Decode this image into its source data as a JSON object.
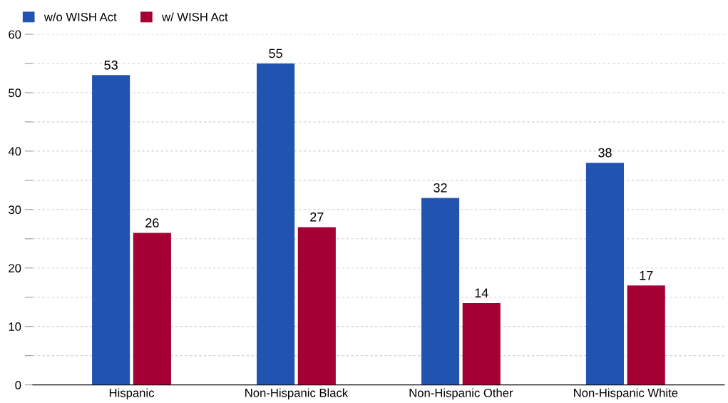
{
  "chart_data": {
    "type": "bar",
    "categories": [
      "Hispanic",
      "Non-Hispanic Black",
      "Non-Hispanic Other",
      "Non-Hispanic White"
    ],
    "series": [
      {
        "name": "w/o WISH Act",
        "color": "#2154b0",
        "values": [
          53,
          55,
          32,
          38
        ]
      },
      {
        "name": "w/ WISH Act",
        "color": "#a50034",
        "values": [
          26,
          27,
          14,
          17
        ]
      }
    ],
    "ylim": [
      0,
      60
    ],
    "yticks": [
      0,
      {
        "value": 5,
        "label": null
      },
      10,
      {
        "value": 15,
        "label": null
      },
      20,
      {
        "value": 25,
        "label": null
      },
      30,
      {
        "value": 35,
        "label": null
      },
      40,
      {
        "value": 45,
        "label": null
      },
      50,
      {
        "value": 55,
        "label": null
      },
      60
    ],
    "grid": "y",
    "legend": "top left",
    "data_labels": true
  }
}
